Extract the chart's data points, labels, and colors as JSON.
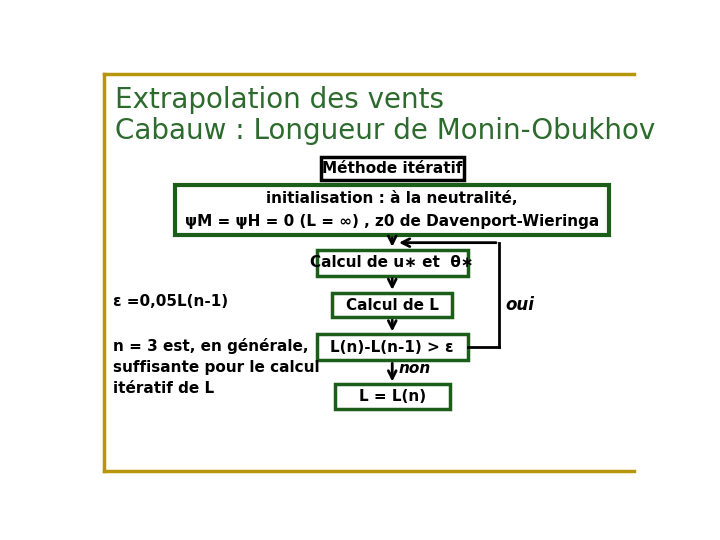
{
  "title_line1": "Extrapolation des vents",
  "title_line2": "Cabauw : Longueur de Monin-Obukhov",
  "title_color": "#2D6A2D",
  "background_color": "#FFFFFF",
  "border_color_gold": "#B8960C",
  "box_black_text": "Méthode itératif",
  "box_black_border": "#000000",
  "green_dark": "#1A5E1A",
  "box1_line1": "initialisation : à la neutralité,",
  "box1_line2": "ψM = ψH = 0 (L = ∞) , z0 de Davenport-Wieringa",
  "box2_text": "Calcul de u∗ et  θ∗",
  "box3_text": "Calcul de L",
  "box4_text": "L(n)-L(n-1) > ε",
  "box5_text": "L = L(n)",
  "label_oui": "oui",
  "label_non": "non",
  "left_text1": "ε =0,05L(n-1)",
  "left_text2": "n = 3 est, en générale,\nsuffisante pour le calcul\nitératif de L",
  "arrow_color": "#000000"
}
